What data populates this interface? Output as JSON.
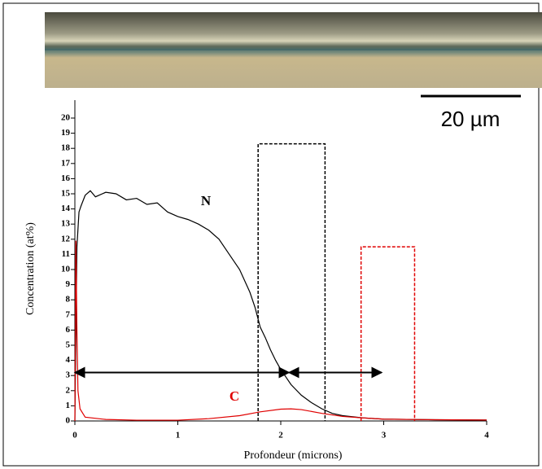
{
  "image": {
    "scale_bar_label": "20 µm"
  },
  "chart_data": {
    "type": "line",
    "x_label": "Profondeur (microns)",
    "y_label": "Concentration (at%)",
    "xlim": [
      0,
      4
    ],
    "ylim": [
      0,
      20
    ],
    "xticks": [
      0,
      1,
      2,
      3,
      4
    ],
    "yticks": [
      0,
      1,
      2,
      3,
      4,
      5,
      6,
      7,
      8,
      9,
      10,
      11,
      12,
      13,
      14,
      15,
      16,
      17,
      18,
      19,
      20
    ],
    "series": [
      {
        "name": "N",
        "color": "#000000",
        "x": [
          0,
          0.02,
          0.04,
          0.06,
          0.1,
          0.15,
          0.2,
          0.3,
          0.4,
          0.5,
          0.6,
          0.7,
          0.8,
          0.9,
          1.0,
          1.1,
          1.2,
          1.3,
          1.4,
          1.5,
          1.6,
          1.7,
          1.75,
          1.8,
          1.85,
          1.9,
          1.95,
          2.0,
          2.05,
          2.1,
          2.2,
          2.3,
          2.4,
          2.5,
          2.6,
          2.8,
          3.0,
          3.5,
          4.0
        ],
        "values": [
          0,
          11.5,
          13.8,
          14.2,
          14.9,
          15.2,
          14.8,
          15.1,
          15.0,
          14.6,
          14.7,
          14.3,
          14.4,
          13.8,
          13.5,
          13.3,
          13.0,
          12.6,
          12.0,
          11.0,
          10.0,
          8.5,
          7.5,
          6.2,
          5.5,
          4.7,
          4.0,
          3.4,
          2.9,
          2.4,
          1.7,
          1.2,
          0.8,
          0.5,
          0.35,
          0.2,
          0.12,
          0.08,
          0.06
        ]
      },
      {
        "name": "C",
        "color": "#e00000",
        "x": [
          0,
          0.01,
          0.02,
          0.03,
          0.05,
          0.1,
          0.3,
          0.6,
          1.0,
          1.3,
          1.6,
          1.8,
          2.0,
          2.1,
          2.2,
          2.4,
          2.6,
          2.8,
          3.0,
          3.5,
          4.0
        ],
        "values": [
          0,
          11.9,
          6,
          2,
          0.8,
          0.25,
          0.1,
          0.05,
          0.05,
          0.15,
          0.35,
          0.6,
          0.78,
          0.8,
          0.75,
          0.5,
          0.3,
          0.2,
          0.12,
          0.08,
          0.06
        ]
      }
    ],
    "boxes": [
      {
        "color": "#000000",
        "x": [
          1.78,
          2.43
        ],
        "height": 18.3
      },
      {
        "color": "#e00000",
        "x": [
          2.78,
          3.3
        ],
        "height": 11.5
      }
    ],
    "arrows": [
      {
        "x": [
          0,
          2.08
        ],
        "y": 3.2
      },
      {
        "x": [
          2.08,
          2.98
        ],
        "y": 3.2
      }
    ]
  }
}
